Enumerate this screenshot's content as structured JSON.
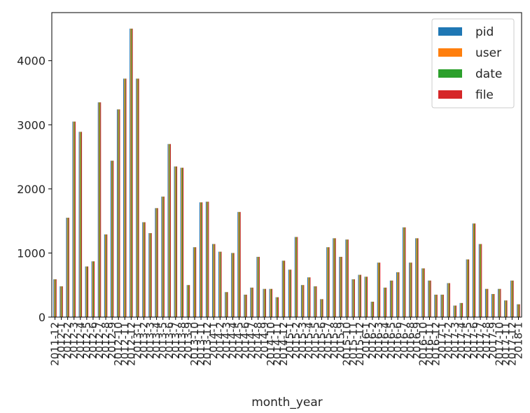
{
  "chart_data": {
    "type": "bar",
    "title": "",
    "xlabel": "month_year",
    "ylabel": "",
    "ylim": [
      0,
      4750
    ],
    "yticks": [
      0,
      1000,
      2000,
      3000,
      4000
    ],
    "grid": false,
    "legend_position": "top-right",
    "colors": {
      "pid": "#1f77b4",
      "user": "#ff7f0e",
      "date": "#2ca02c",
      "file": "#d62728"
    },
    "categories": [
      "2011-12",
      "2012-1",
      "2012-2",
      "2012-3",
      "2012-4",
      "2012-5",
      "2012-6",
      "2012-7",
      "2012-8",
      "2012-9",
      "2012-10",
      "2012-11",
      "2012-12",
      "2013-1",
      "2013-2",
      "2013-3",
      "2013-4",
      "2013-5",
      "2013-6",
      "2013-7",
      "2013-8",
      "2013-9",
      "2013-10",
      "2013-11",
      "2013-12",
      "2014-1",
      "2014-2",
      "2014-3",
      "2014-4",
      "2014-5",
      "2014-6",
      "2014-7",
      "2014-8",
      "2014-9",
      "2014-10",
      "2014-11",
      "2014-12",
      "2015-1",
      "2015-2",
      "2015-3",
      "2015-4",
      "2015-5",
      "2015-6",
      "2015-7",
      "2015-8",
      "2015-9",
      "2015-10",
      "2015-11",
      "2015-12",
      "2016-1",
      "2016-2",
      "2016-3",
      "2016-4",
      "2016-5",
      "2016-6",
      "2016-7",
      "2016-8",
      "2016-9",
      "2016-10",
      "2016-11",
      "2016-12",
      "2017-1",
      "2017-2",
      "2017-3",
      "2017-4",
      "2017-5",
      "2017-6",
      "2017-7",
      "2017-8",
      "2017-9",
      "2017-10",
      "2017-11",
      "2017-12",
      "2018-1"
    ],
    "series": [
      {
        "name": "pid",
        "values": [
          590,
          480,
          1550,
          3050,
          2890,
          790,
          870,
          3350,
          1290,
          2440,
          3240,
          3720,
          4500,
          3720,
          1480,
          1310,
          1700,
          1880,
          2700,
          2350,
          2330,
          500,
          1090,
          1790,
          1800,
          1140,
          1020,
          390,
          1000,
          1640,
          350,
          460,
          940,
          440,
          440,
          310,
          880,
          740,
          1250,
          500,
          620,
          480,
          280,
          1090,
          1230,
          940,
          1210,
          590,
          660,
          630,
          240,
          850,
          460,
          570,
          700,
          1400,
          850,
          1230,
          760,
          570,
          350,
          350,
          530,
          180,
          220,
          900,
          1460,
          1140,
          440,
          360,
          440,
          260,
          570,
          200
        ]
      },
      {
        "name": "user",
        "values": [
          590,
          480,
          1550,
          3050,
          2890,
          790,
          870,
          3350,
          1290,
          2440,
          3240,
          3720,
          4500,
          3720,
          1480,
          1310,
          1700,
          1880,
          2700,
          2350,
          2330,
          500,
          1090,
          1790,
          1800,
          1140,
          1020,
          390,
          1000,
          1640,
          350,
          460,
          940,
          440,
          440,
          310,
          880,
          740,
          1250,
          500,
          620,
          480,
          280,
          1090,
          1230,
          940,
          1210,
          590,
          660,
          630,
          240,
          850,
          460,
          570,
          700,
          1400,
          850,
          1230,
          760,
          570,
          350,
          350,
          530,
          180,
          220,
          900,
          1460,
          1140,
          440,
          360,
          440,
          260,
          570,
          200
        ]
      },
      {
        "name": "date",
        "values": [
          590,
          480,
          1550,
          3050,
          2890,
          790,
          870,
          3350,
          1290,
          2440,
          3240,
          3720,
          4500,
          3720,
          1480,
          1310,
          1700,
          1880,
          2700,
          2350,
          2330,
          500,
          1090,
          1790,
          1800,
          1140,
          1020,
          390,
          1000,
          1640,
          350,
          460,
          940,
          440,
          440,
          310,
          880,
          740,
          1250,
          500,
          620,
          480,
          280,
          1090,
          1230,
          940,
          1210,
          590,
          660,
          630,
          240,
          850,
          460,
          570,
          700,
          1400,
          850,
          1230,
          760,
          570,
          350,
          350,
          530,
          180,
          220,
          900,
          1460,
          1140,
          440,
          360,
          440,
          260,
          570,
          200
        ]
      },
      {
        "name": "file",
        "values": [
          590,
          480,
          1550,
          3050,
          2890,
          790,
          870,
          3350,
          1290,
          2440,
          3240,
          3720,
          4500,
          3720,
          1480,
          1310,
          1700,
          1880,
          2700,
          2350,
          2330,
          500,
          1090,
          1790,
          1800,
          1140,
          1020,
          390,
          1000,
          1640,
          350,
          460,
          940,
          440,
          440,
          310,
          880,
          740,
          1250,
          500,
          620,
          480,
          280,
          1090,
          1230,
          940,
          1210,
          590,
          660,
          630,
          240,
          850,
          460,
          570,
          700,
          1400,
          850,
          1230,
          760,
          570,
          350,
          350,
          530,
          180,
          220,
          900,
          1460,
          1140,
          440,
          360,
          440,
          260,
          570,
          200
        ]
      }
    ]
  }
}
